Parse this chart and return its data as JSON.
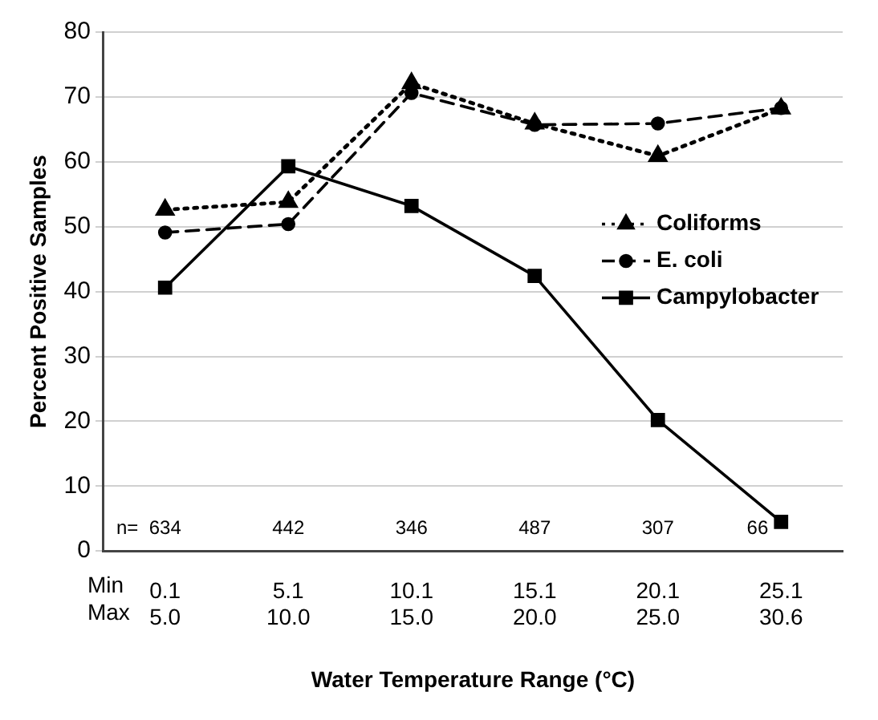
{
  "chart_data": {
    "type": "line",
    "xlabel": "Water Temperature Range (°C)",
    "ylabel": "Percent Positive Samples",
    "categories": [
      "0.1\n5.0",
      "5.1\n10.0",
      "10.1\n15.0",
      "15.1\n20.0",
      "20.1\n25.0",
      "25.1\n30.6"
    ],
    "series": [
      {
        "name": "Coliforms",
        "color": "#000000",
        "marker": "triangle",
        "line_style": "dotted",
        "values": [
          52.6,
          53.8,
          72.1,
          65.9,
          60.9,
          68.2
        ]
      },
      {
        "name": "E. coli",
        "color": "#000000",
        "marker": "circle",
        "line_style": "dashed",
        "values": [
          49.1,
          50.4,
          70.6,
          65.7,
          65.9,
          68.3
        ]
      },
      {
        "name": "Campylobacter",
        "color": "#000000",
        "marker": "square",
        "line_style": "solid",
        "values": [
          40.6,
          59.3,
          53.2,
          42.4,
          20.2,
          4.5
        ]
      }
    ],
    "ylim": [
      0,
      80
    ],
    "yticks": [
      0,
      10,
      20,
      30,
      40,
      50,
      60,
      70,
      80
    ],
    "grid": "y",
    "legend": "right",
    "annotations": [
      "n=",
      "634",
      "442",
      "346",
      "487",
      "307",
      "66",
      "Min",
      "Max"
    ]
  }
}
